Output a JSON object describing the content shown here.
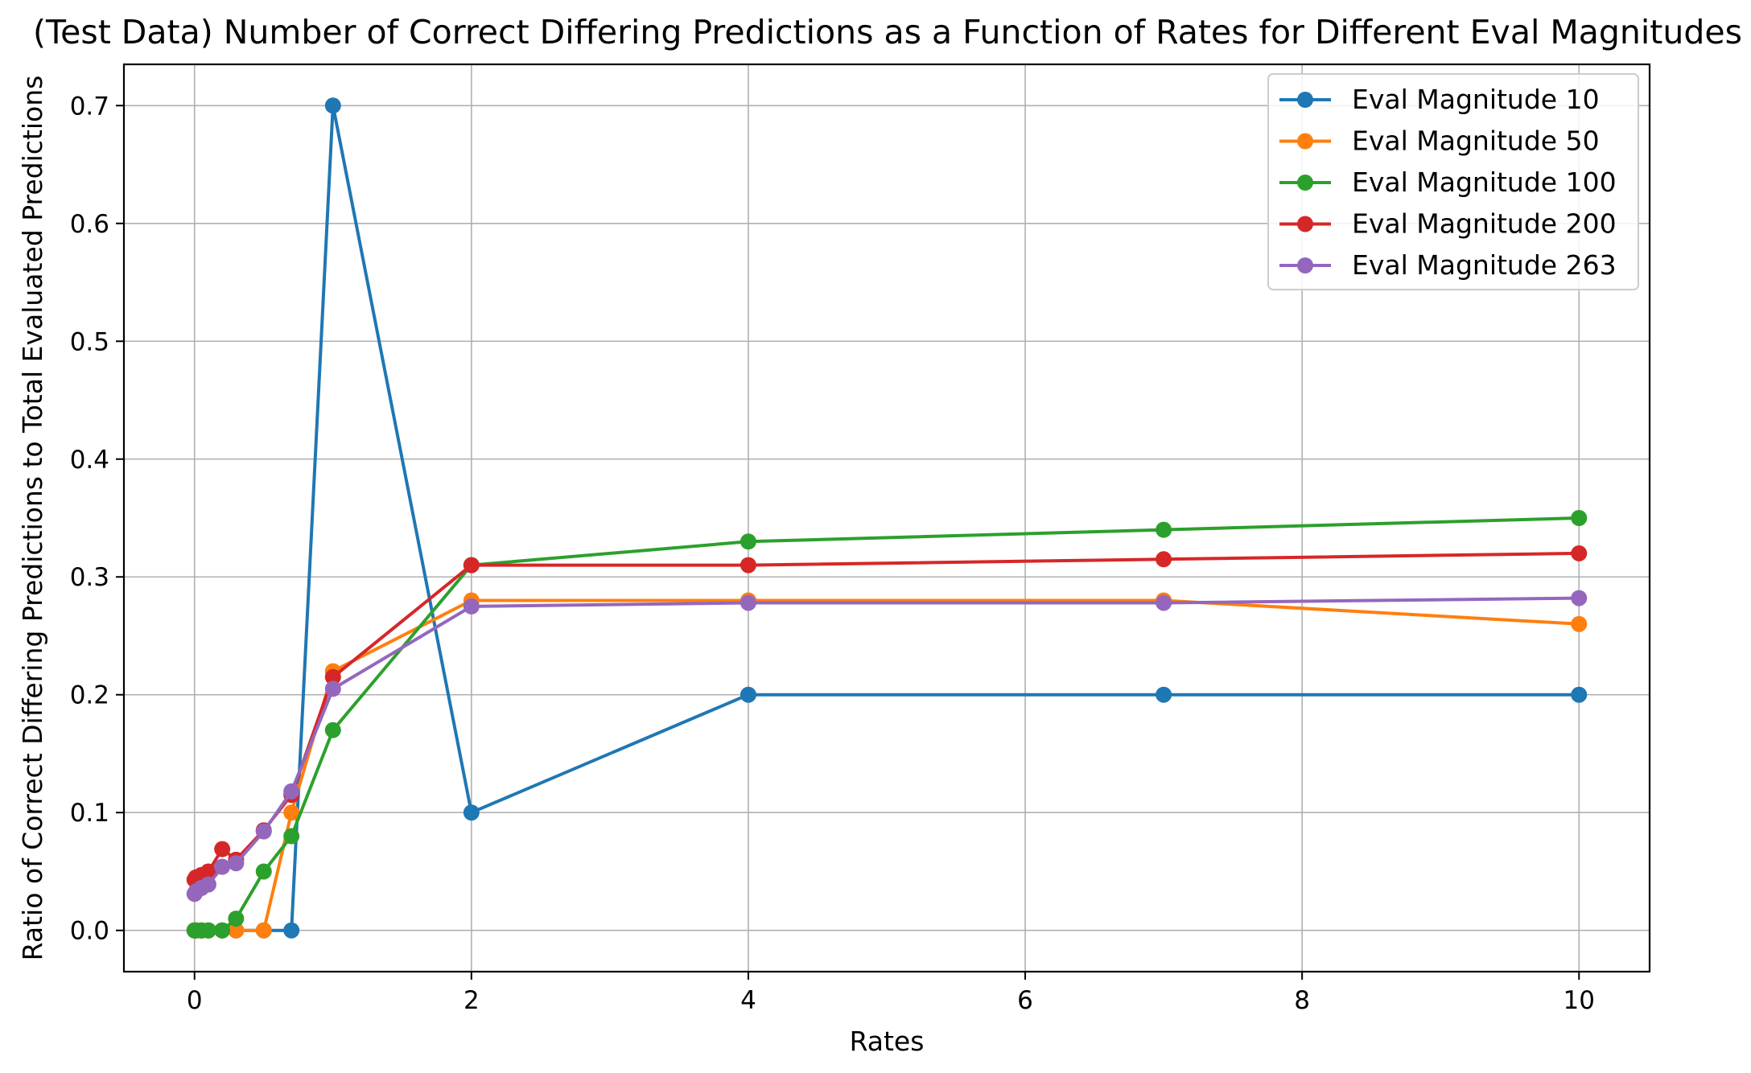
{
  "chart_data": {
    "type": "line",
    "title": "(Test Data) Number of Correct Differing Predictions as a Function of Rates for Different Eval Magnitudes",
    "xlabel": "Rates",
    "ylabel": "Ratio of Correct Differing Predictions to Total Evaluated Predictions",
    "xlim": [
      -0.51,
      10.51
    ],
    "ylim": [
      -0.035,
      0.735
    ],
    "x_ticks": [
      0,
      2,
      4,
      6,
      8,
      10
    ],
    "x_tick_labels": [
      "0",
      "2",
      "4",
      "6",
      "8",
      "10"
    ],
    "y_ticks": [
      0.0,
      0.1,
      0.2,
      0.3,
      0.4,
      0.5,
      0.6,
      0.7
    ],
    "y_tick_labels": [
      "0.0",
      "0.1",
      "0.2",
      "0.3",
      "0.4",
      "0.5",
      "0.6",
      "0.7"
    ],
    "grid": true,
    "legend_position": "top-right",
    "x": [
      0,
      0.01,
      0.05,
      0.1,
      0.2,
      0.3,
      0.5,
      0.7,
      1,
      2,
      4,
      7,
      10
    ],
    "series": [
      {
        "name": "Eval Magnitude 10",
        "color": "#1f77b4",
        "values": [
          0.0,
          0.0,
          0.0,
          0.0,
          0.0,
          0.0,
          0.0,
          0.0,
          0.7,
          0.1,
          0.2,
          0.2,
          0.2
        ]
      },
      {
        "name": "Eval Magnitude 50",
        "color": "#ff7f0e",
        "values": [
          0.0,
          0.0,
          0.0,
          0.0,
          0.0,
          0.0,
          0.0,
          0.1,
          0.22,
          0.28,
          0.28,
          0.28,
          0.26
        ]
      },
      {
        "name": "Eval Magnitude 100",
        "color": "#2ca02c",
        "values": [
          0.0,
          0.0,
          0.0,
          0.0,
          0.0,
          0.01,
          0.05,
          0.08,
          0.17,
          0.31,
          0.33,
          0.34,
          0.35
        ]
      },
      {
        "name": "Eval Magnitude 200",
        "color": "#d62728",
        "values": [
          0.043,
          0.045,
          0.047,
          0.05,
          0.069,
          0.06,
          0.085,
          0.115,
          0.215,
          0.31,
          0.31,
          0.315,
          0.32
        ]
      },
      {
        "name": "Eval Magnitude 263",
        "color": "#9467bd",
        "values": [
          0.031,
          0.033,
          0.036,
          0.039,
          0.054,
          0.057,
          0.084,
          0.118,
          0.205,
          0.275,
          0.278,
          0.278,
          0.282
        ]
      }
    ]
  }
}
